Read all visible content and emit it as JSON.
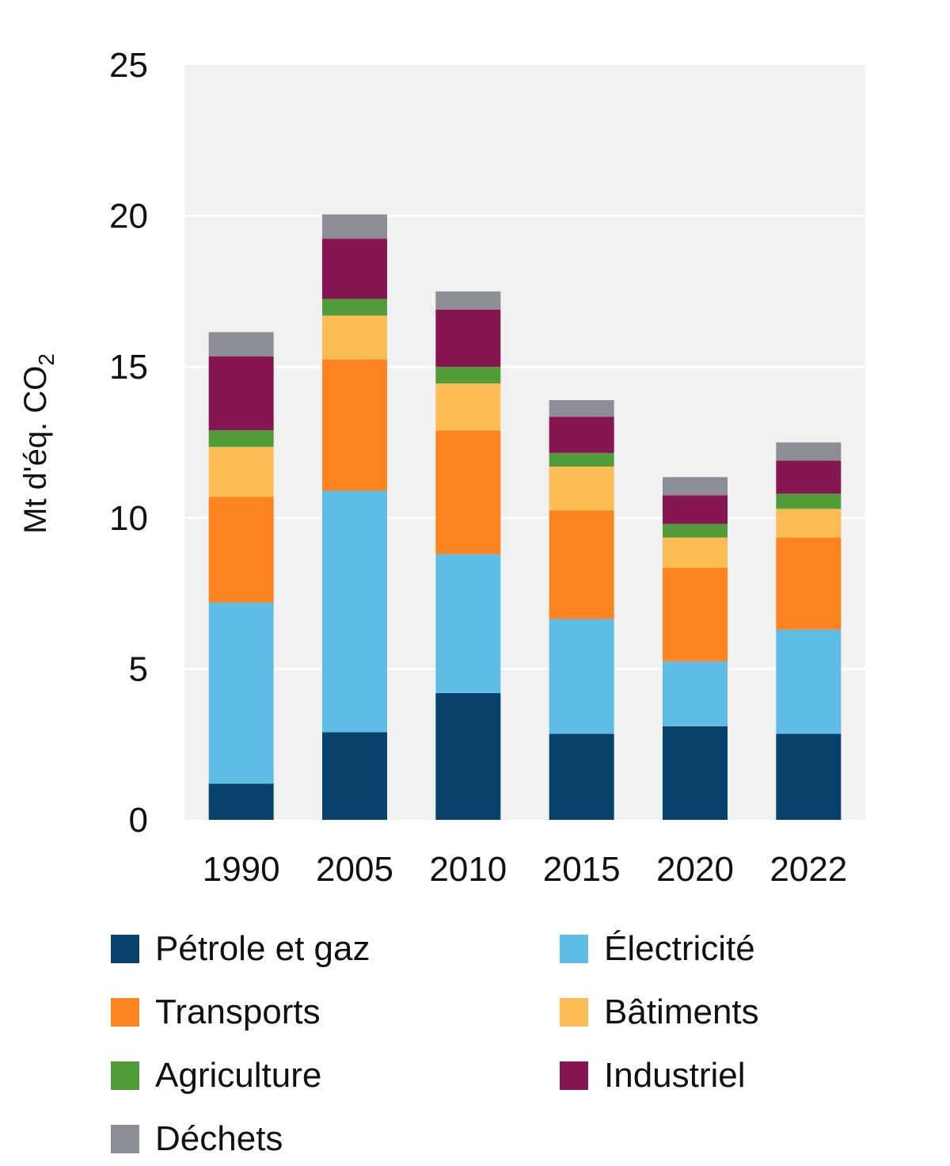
{
  "chart_data": {
    "type": "bar",
    "stacked": true,
    "categories": [
      "1990",
      "2005",
      "2010",
      "2015",
      "2020",
      "2022"
    ],
    "ylabel": "Mt d'éq. CO",
    "ylabel_subscript": "2",
    "ylim": [
      0,
      25
    ],
    "yticks": [
      "0",
      "5",
      "10",
      "15",
      "20",
      "25"
    ],
    "grid": true,
    "legend_position": "bottom",
    "series": [
      {
        "name": "Pétrole et gaz",
        "color": "#08426a",
        "values": [
          1.2,
          2.9,
          4.2,
          2.85,
          3.1,
          2.85
        ]
      },
      {
        "name": "Électricité",
        "color": "#5fbde5",
        "values": [
          6.0,
          8.0,
          4.6,
          3.8,
          2.15,
          3.45
        ]
      },
      {
        "name": "Transports",
        "color": "#fd8420",
        "values": [
          3.5,
          4.35,
          4.1,
          3.6,
          3.1,
          3.05
        ]
      },
      {
        "name": "Bâtiments",
        "color": "#fdbd54",
        "values": [
          1.65,
          1.45,
          1.55,
          1.45,
          1.0,
          0.95
        ]
      },
      {
        "name": "Agriculture",
        "color": "#519c3a",
        "values": [
          0.55,
          0.55,
          0.55,
          0.45,
          0.45,
          0.5
        ]
      },
      {
        "name": "Industriel",
        "color": "#861652",
        "values": [
          2.45,
          2.0,
          1.9,
          1.2,
          0.95,
          1.1
        ]
      },
      {
        "name": "Déchets",
        "color": "#8d8d96",
        "values": [
          0.8,
          0.8,
          0.6,
          0.55,
          0.6,
          0.6
        ]
      }
    ]
  }
}
